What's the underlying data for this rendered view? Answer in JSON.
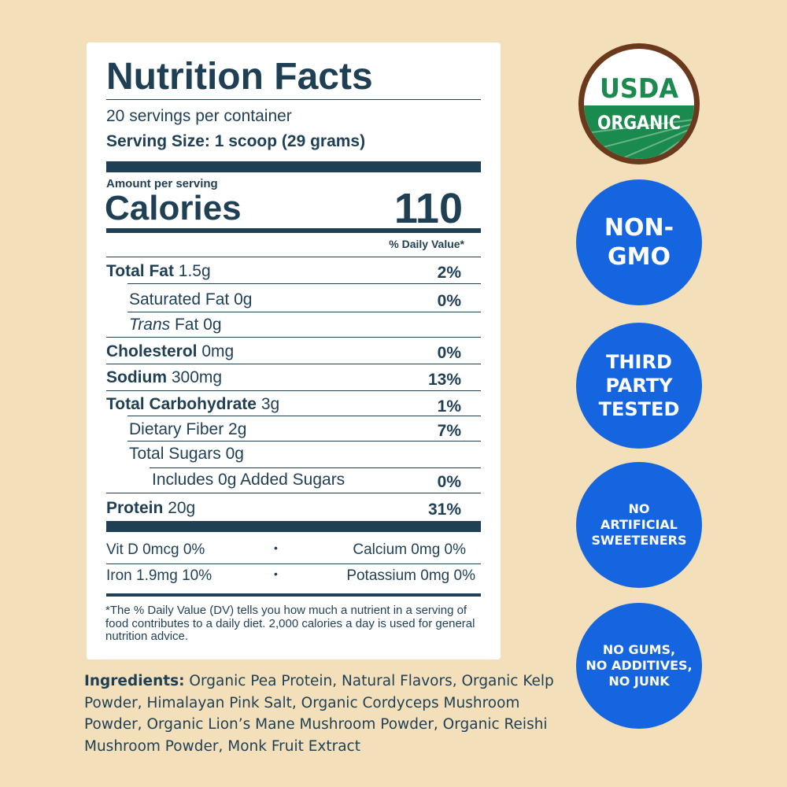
{
  "label": {
    "title": "Nutrition Facts",
    "servings": "20 servings per container",
    "serving_size": "Serving Size: 1 scoop (29 grams)",
    "amount_per_serving": "Amount per serving",
    "calories_label": "Calories",
    "calories_value": "110",
    "dv_header": "% Daily Value*",
    "rows": [
      {
        "name": "Total Fat",
        "amount": "1.5g",
        "dv": "2%"
      },
      {
        "name": "Saturated Fat",
        "amount": "0g",
        "dv": "0%"
      },
      {
        "name": "Trans",
        "name2": "Fat",
        "amount": "0g",
        "dv": ""
      },
      {
        "name": "Cholesterol",
        "amount": "0mg",
        "dv": "0%"
      },
      {
        "name": "Sodium",
        "amount": "300mg",
        "dv": "13%"
      },
      {
        "name": "Total Carbohydrate",
        "amount": "3g",
        "dv": "1%"
      },
      {
        "name": "Dietary Fiber",
        "amount": "2g",
        "dv": "7%"
      },
      {
        "name": "Total Sugars",
        "amount": "0g",
        "dv": ""
      },
      {
        "name": "Includes 0g Added Sugars",
        "amount": "",
        "dv": "0%"
      },
      {
        "name": "Protein",
        "amount": "20g",
        "dv": "31%"
      }
    ],
    "vitamins": [
      {
        "left": "Vit D 0mcg 0%",
        "right": "Calcium 0mg 0%"
      },
      {
        "left": "Iron 1.9mg 10%",
        "right": "Potassium 0mg 0%"
      }
    ],
    "bullet": "•",
    "footnote": "*The % Daily Value (DV) tells you how much a nutrient in a serving of food contributes to a daily diet. 2,000 calories a day is used for general nutrition advice."
  },
  "ingredients": {
    "label": "Ingredients:",
    "text": "Organic Pea Protein, Natural Flavors, Organic Kelp Powder, Himalayan Pink Salt, Organic Cordyceps Mushroom Powder, Organic Lion’s Mane Mushroom Powder, Organic Reishi Mushroom Powder, Monk Fruit Extract"
  },
  "badges": {
    "usda_top": "USDA",
    "usda_bottom": "ORGANIC",
    "items": [
      "NON-\nGMO",
      "THIRD\nPARTY\nTESTED",
      "NO\nARTIFICIAL\nSWEETENERS",
      "NO GUMS,\nNO ADDITIVES,\nNO JUNK"
    ]
  },
  "colors": {
    "background": "#f3dfb9",
    "text": "#1f3f55",
    "badge_blue": "#1565e0",
    "usda_green": "#1a8a4e",
    "usda_brown": "#6b3a1c"
  }
}
